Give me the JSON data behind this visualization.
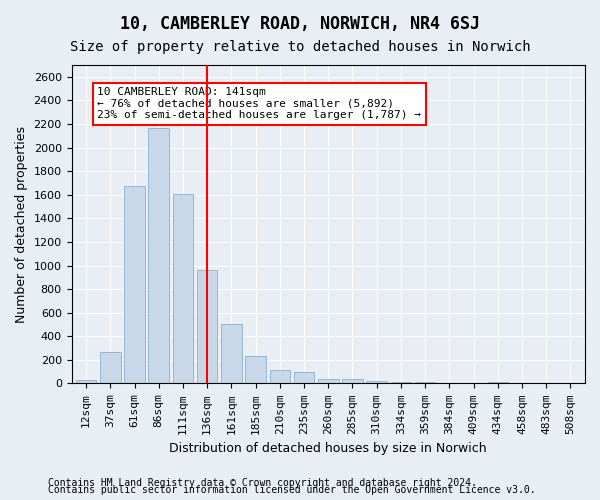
{
  "title": "10, CAMBERLEY ROAD, NORWICH, NR4 6SJ",
  "subtitle": "Size of property relative to detached houses in Norwich",
  "xlabel": "Distribution of detached houses by size in Norwich",
  "ylabel": "Number of detached properties",
  "categories": [
    "12sqm",
    "37sqm",
    "61sqm",
    "86sqm",
    "111sqm",
    "136sqm",
    "161sqm",
    "185sqm",
    "210sqm",
    "235sqm",
    "260sqm",
    "285sqm",
    "310sqm",
    "334sqm",
    "359sqm",
    "384sqm",
    "409sqm",
    "434sqm",
    "458sqm",
    "483sqm",
    "508sqm"
  ],
  "values": [
    25,
    270,
    1670,
    2170,
    1610,
    960,
    500,
    230,
    115,
    95,
    40,
    35,
    22,
    15,
    12,
    8,
    5,
    12,
    3,
    5,
    3
  ],
  "bar_color": "#c8d8e8",
  "bar_edge_color": "#7aa8c8",
  "vline_x": 5.0,
  "vline_color": "red",
  "annotation_text": "10 CAMBERLEY ROAD: 141sqm\n← 76% of detached houses are smaller (5,892)\n23% of semi-detached houses are larger (1,787) →",
  "annotation_box_color": "white",
  "annotation_box_edge": "red",
  "ylim": [
    0,
    2700
  ],
  "yticks": [
    0,
    200,
    400,
    600,
    800,
    1000,
    1200,
    1400,
    1600,
    1800,
    2000,
    2200,
    2400,
    2600
  ],
  "bg_color": "#e8eef4",
  "plot_bg_color": "#e8eef4",
  "footer1": "Contains HM Land Registry data © Crown copyright and database right 2024.",
  "footer2": "Contains public sector information licensed under the Open Government Licence v3.0.",
  "title_fontsize": 12,
  "subtitle_fontsize": 10,
  "axis_label_fontsize": 9,
  "tick_fontsize": 8,
  "annotation_fontsize": 8,
  "footer_fontsize": 7
}
